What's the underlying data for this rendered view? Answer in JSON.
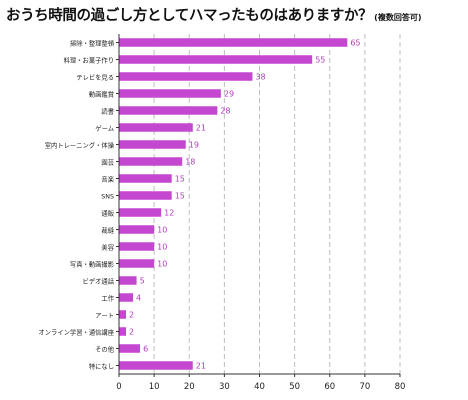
{
  "title": "おうち時間の過ごし方としてハマったものはありますか？",
  "subtitle": "(複数回答可)",
  "colors": {
    "bar": "#c447d0",
    "value_label": "#b23cbf",
    "grid": "#bdbdbd",
    "axis": "#333333"
  },
  "chart_data": {
    "type": "bar",
    "orientation": "horizontal",
    "title": "おうち時間の過ごし方としてハマったものはありますか？",
    "subtitle": "(複数回答可)",
    "categories": [
      "掃除・整理整頓",
      "料理・お菓子作り",
      "テレビを見る",
      "動画鑑賞",
      "読書",
      "ゲーム",
      "室内トレーニング・体操",
      "園芸",
      "音楽",
      "SNS",
      "通販",
      "裁縫",
      "美容",
      "写真・動画撮影",
      "ビデオ通話",
      "工作",
      "アート",
      "オンライン学習・通信講座",
      "その他",
      "特になし"
    ],
    "values": [
      65,
      55,
      38,
      29,
      28,
      21,
      19,
      18,
      15,
      15,
      12,
      10,
      10,
      10,
      5,
      4,
      2,
      2,
      6,
      21
    ],
    "x_ticks": [
      "0",
      "10",
      "20",
      "30",
      "40",
      "50",
      "60",
      "70",
      "80"
    ],
    "xlim": [
      0,
      80
    ],
    "grid": "vertical dashed",
    "legend": "none"
  }
}
